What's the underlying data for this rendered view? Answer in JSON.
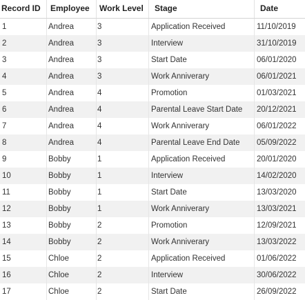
{
  "table": {
    "columns": [
      "Record ID",
      "Employee",
      "Work Level",
      "Stage",
      "Date"
    ],
    "rows": [
      [
        "1",
        "Andrea",
        "3",
        "Application Received",
        "11/10/2019"
      ],
      [
        "2",
        "Andrea",
        "3",
        "Interview",
        "31/10/2019"
      ],
      [
        "3",
        "Andrea",
        "3",
        "Start Date",
        "06/01/2020"
      ],
      [
        "4",
        "Andrea",
        "3",
        "Work Anniverary",
        "06/01/2021"
      ],
      [
        "5",
        "Andrea",
        "4",
        "Promotion",
        "01/03/2021"
      ],
      [
        "6",
        "Andrea",
        "4",
        "Parental Leave Start Date",
        "20/12/2021"
      ],
      [
        "7",
        "Andrea",
        "4",
        "Work Anniverary",
        "06/01/2022"
      ],
      [
        "8",
        "Andrea",
        "4",
        "Parental Leave End Date",
        "05/09/2022"
      ],
      [
        "9",
        "Bobby",
        "1",
        "Application Received",
        "20/01/2020"
      ],
      [
        "10",
        "Bobby",
        "1",
        "Interview",
        "14/02/2020"
      ],
      [
        "11",
        "Bobby",
        "1",
        "Start Date",
        "13/03/2020"
      ],
      [
        "12",
        "Bobby",
        "1",
        "Work Anniverary",
        "13/03/2021"
      ],
      [
        "13",
        "Bobby",
        "2",
        "Promotion",
        "12/09/2021"
      ],
      [
        "14",
        "Bobby",
        "2",
        "Work Anniverary",
        "13/03/2022"
      ],
      [
        "15",
        "Chloe",
        "2",
        "Application Received",
        "01/06/2022"
      ],
      [
        "16",
        "Chloe",
        "2",
        "Interview",
        "30/06/2022"
      ],
      [
        "17",
        "Chloe",
        "2",
        "Start Date",
        "26/09/2022"
      ]
    ]
  }
}
